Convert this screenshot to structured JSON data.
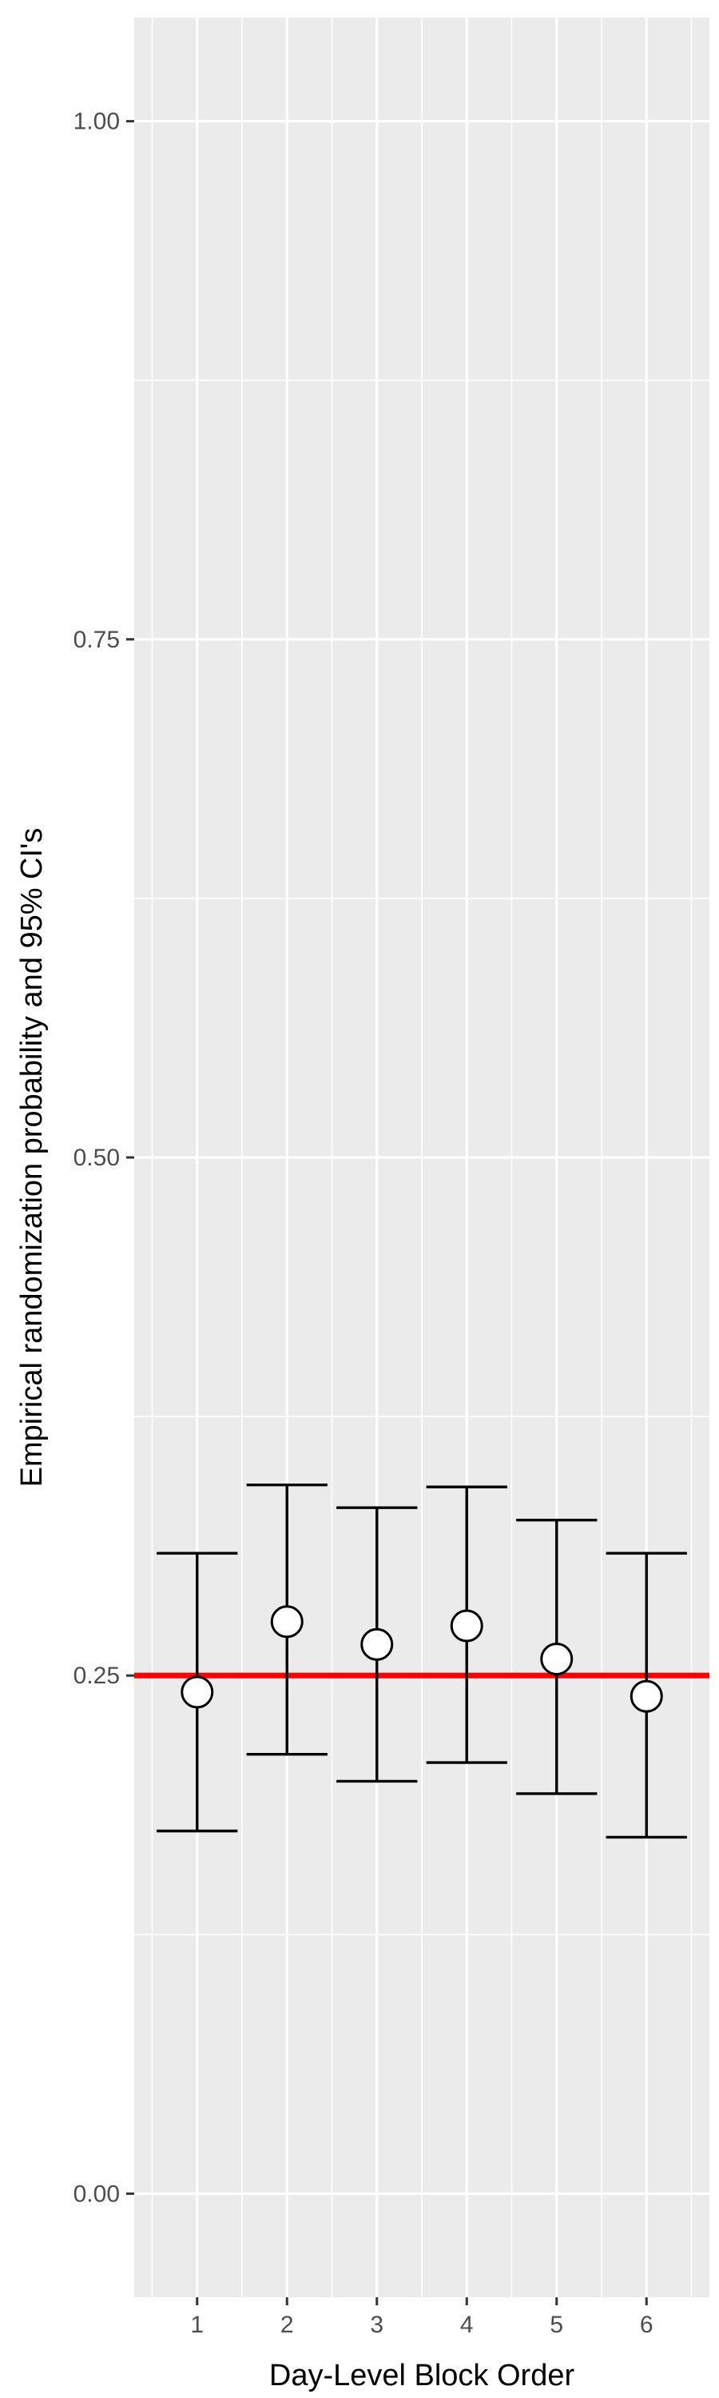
{
  "chart_data": {
    "type": "scatter",
    "xlabel": "Day-Level Block Order",
    "ylabel": "Empirical randomization probability and 95% CI's",
    "xlim": [
      0.3,
      6.7
    ],
    "ylim": [
      -0.05,
      1.05
    ],
    "x_ticks": [
      1,
      2,
      3,
      4,
      5,
      6
    ],
    "x_tick_labels": [
      "1",
      "2",
      "3",
      "4",
      "5",
      "6"
    ],
    "y_ticks": [
      0.0,
      0.25,
      0.5,
      0.75,
      1.0
    ],
    "y_tick_labels": [
      "0.00",
      "0.25",
      "0.50",
      "0.75",
      "1.00"
    ],
    "y_minor_ticks": [
      0.125,
      0.375,
      0.625,
      0.875
    ],
    "points": [
      {
        "x": 1,
        "y": 0.242,
        "lower": 0.175,
        "upper": 0.309
      },
      {
        "x": 2,
        "y": 0.276,
        "lower": 0.212,
        "upper": 0.342
      },
      {
        "x": 3,
        "y": 0.265,
        "lower": 0.199,
        "upper": 0.331
      },
      {
        "x": 4,
        "y": 0.274,
        "lower": 0.208,
        "upper": 0.341
      },
      {
        "x": 5,
        "y": 0.258,
        "lower": 0.193,
        "upper": 0.325
      },
      {
        "x": 6,
        "y": 0.24,
        "lower": 0.172,
        "upper": 0.309
      }
    ],
    "reference_line": {
      "y": 0.25,
      "color": "#ff0000"
    },
    "grid": true,
    "legend": "none",
    "colors": {
      "panel": "#ebebeb",
      "grid": "#ffffff",
      "errorbar": "#000000",
      "point_fill": "#ffffff",
      "point_stroke": "#000000"
    }
  }
}
